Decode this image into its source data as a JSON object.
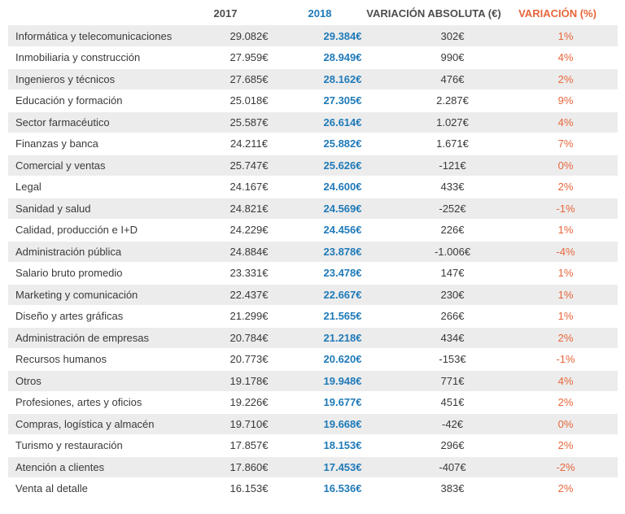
{
  "header": {
    "col_2017": "2017",
    "col_2018": "2018",
    "col_abs": "VARIACIÓN ABSOLUTA (€)",
    "col_var": "VARIACIÓN (%)"
  },
  "colors": {
    "blue": "#1f7ab8",
    "orange": "#e8653a",
    "stripe": "#ececec"
  },
  "rows": [
    {
      "label": "Informática y telecomunicaciones",
      "y2017": "29.082€",
      "y2018": "29.384€",
      "abs": "302€",
      "var": "1%"
    },
    {
      "label": "Inmobiliaria y construcción",
      "y2017": "27.959€",
      "y2018": "28.949€",
      "abs": "990€",
      "var": "4%"
    },
    {
      "label": "Ingenieros y técnicos",
      "y2017": "27.685€",
      "y2018": "28.162€",
      "abs": "476€",
      "var": "2%"
    },
    {
      "label": "Educación y formación",
      "y2017": "25.018€",
      "y2018": "27.305€",
      "abs": "2.287€",
      "var": "9%"
    },
    {
      "label": "Sector farmacéutico",
      "y2017": "25.587€",
      "y2018": "26.614€",
      "abs": "1.027€",
      "var": "4%"
    },
    {
      "label": "Finanzas y banca",
      "y2017": "24.211€",
      "y2018": "25.882€",
      "abs": "1.671€",
      "var": "7%"
    },
    {
      "label": "Comercial y ventas",
      "y2017": "25.747€",
      "y2018": "25.626€",
      "abs": "-121€",
      "var": "0%"
    },
    {
      "label": "Legal",
      "y2017": "24.167€",
      "y2018": "24.600€",
      "abs": "433€",
      "var": "2%"
    },
    {
      "label": "Sanidad y salud",
      "y2017": "24.821€",
      "y2018": "24.569€",
      "abs": "-252€",
      "var": "-1%"
    },
    {
      "label": "Calidad, producción e I+D",
      "y2017": "24.229€",
      "y2018": "24.456€",
      "abs": "226€",
      "var": "1%"
    },
    {
      "label": "Administración pública",
      "y2017": "24.884€",
      "y2018": "23.878€",
      "abs": "-1.006€",
      "var": "-4%"
    },
    {
      "label": "Salario bruto promedio",
      "y2017": "23.331€",
      "y2018": "23.478€",
      "abs": "147€",
      "var": "1%"
    },
    {
      "label": "Marketing y comunicación",
      "y2017": "22.437€",
      "y2018": "22.667€",
      "abs": "230€",
      "var": "1%"
    },
    {
      "label": "Diseño y artes gráficas",
      "y2017": "21.299€",
      "y2018": "21.565€",
      "abs": "266€",
      "var": "1%"
    },
    {
      "label": "Administración de empresas",
      "y2017": "20.784€",
      "y2018": "21.218€",
      "abs": "434€",
      "var": "2%"
    },
    {
      "label": "Recursos humanos",
      "y2017": "20.773€",
      "y2018": "20.620€",
      "abs": "-153€",
      "var": "-1%"
    },
    {
      "label": "Otros",
      "y2017": "19.178€",
      "y2018": "19.948€",
      "abs": "771€",
      "var": "4%"
    },
    {
      "label": "Profesiones, artes y oficios",
      "y2017": "19.226€",
      "y2018": "19.677€",
      "abs": "451€",
      "var": "2%"
    },
    {
      "label": "Compras, logística y almacén",
      "y2017": "19.710€",
      "y2018": "19.668€",
      "abs": "-42€",
      "var": "0%"
    },
    {
      "label": "Turismo y restauración",
      "y2017": "17.857€",
      "y2018": "18.153€",
      "abs": "296€",
      "var": "2%"
    },
    {
      "label": "Atención a clientes",
      "y2017": "17.860€",
      "y2018": "17.453€",
      "abs": "-407€",
      "var": "-2%"
    },
    {
      "label": "Venta al detalle",
      "y2017": "16.153€",
      "y2018": "16.536€",
      "abs": "383€",
      "var": "2%"
    }
  ]
}
